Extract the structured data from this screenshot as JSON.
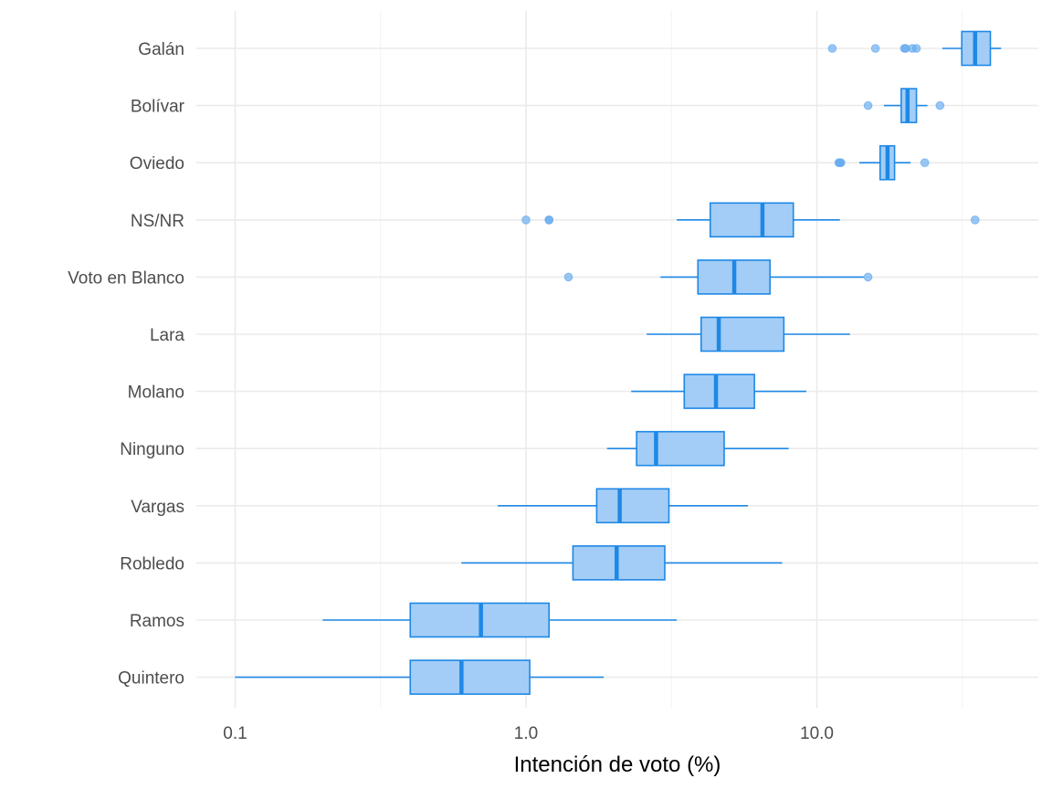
{
  "chart_data": {
    "type": "boxplot",
    "orientation": "horizontal",
    "xlabel": "Intención de voto (%)",
    "ylabel": "",
    "x_scale": "log10",
    "xlim": [
      0.08,
      55
    ],
    "x_ticks": [
      0.1,
      1.0,
      10.0
    ],
    "x_tick_labels": [
      "0.1",
      "1.0",
      "10.0"
    ],
    "grid": true,
    "colors": {
      "fill": "#a3cdf6",
      "line": "#1e88e5",
      "outlier": "#64aaf0"
    },
    "series": [
      {
        "name": "Galán",
        "whisker_low": 27,
        "q1": 31.5,
        "median": 35,
        "q3": 39.5,
        "whisker_high": 43,
        "outliers": [
          11.3,
          15.9,
          20,
          20.2,
          21.3,
          22
        ]
      },
      {
        "name": "Bolívar",
        "whisker_low": 17,
        "q1": 19.5,
        "median": 20.5,
        "q3": 22,
        "whisker_high": 24,
        "outliers": [
          15,
          26.5
        ]
      },
      {
        "name": "Oviedo",
        "whisker_low": 14,
        "q1": 16.5,
        "median": 17.5,
        "q3": 18.5,
        "whisker_high": 21,
        "outliers": [
          11.9,
          12,
          12.1,
          23.5
        ]
      },
      {
        "name": "NS/NR",
        "whisker_low": 3.3,
        "q1": 4.3,
        "median": 6.5,
        "q3": 8.3,
        "whisker_high": 12,
        "outliers": [
          1.0,
          1.2,
          1.2,
          35
        ]
      },
      {
        "name": "Voto en Blanco",
        "whisker_low": 2.9,
        "q1": 3.9,
        "median": 5.2,
        "q3": 6.9,
        "whisker_high": 14.5,
        "outliers": [
          1.4,
          15
        ]
      },
      {
        "name": "Lara",
        "whisker_low": 2.6,
        "q1": 4.0,
        "median": 4.6,
        "q3": 7.7,
        "whisker_high": 13,
        "outliers": []
      },
      {
        "name": "Molano",
        "whisker_low": 2.3,
        "q1": 3.5,
        "median": 4.5,
        "q3": 6.1,
        "whisker_high": 9.2,
        "outliers": []
      },
      {
        "name": "Ninguno",
        "whisker_low": 1.9,
        "q1": 2.4,
        "median": 2.8,
        "q3": 4.8,
        "whisker_high": 8.0,
        "outliers": []
      },
      {
        "name": "Vargas",
        "whisker_low": 0.8,
        "q1": 1.75,
        "median": 2.1,
        "q3": 3.1,
        "whisker_high": 5.8,
        "outliers": []
      },
      {
        "name": "Robledo",
        "whisker_low": 0.6,
        "q1": 1.45,
        "median": 2.05,
        "q3": 3.0,
        "whisker_high": 7.6,
        "outliers": []
      },
      {
        "name": "Ramos",
        "whisker_low": 0.2,
        "q1": 0.4,
        "median": 0.7,
        "q3": 1.2,
        "whisker_high": 3.3,
        "outliers": []
      },
      {
        "name": "Quintero",
        "whisker_low": 0.1,
        "q1": 0.4,
        "median": 0.6,
        "q3": 1.03,
        "whisker_high": 1.85,
        "outliers": []
      }
    ]
  }
}
